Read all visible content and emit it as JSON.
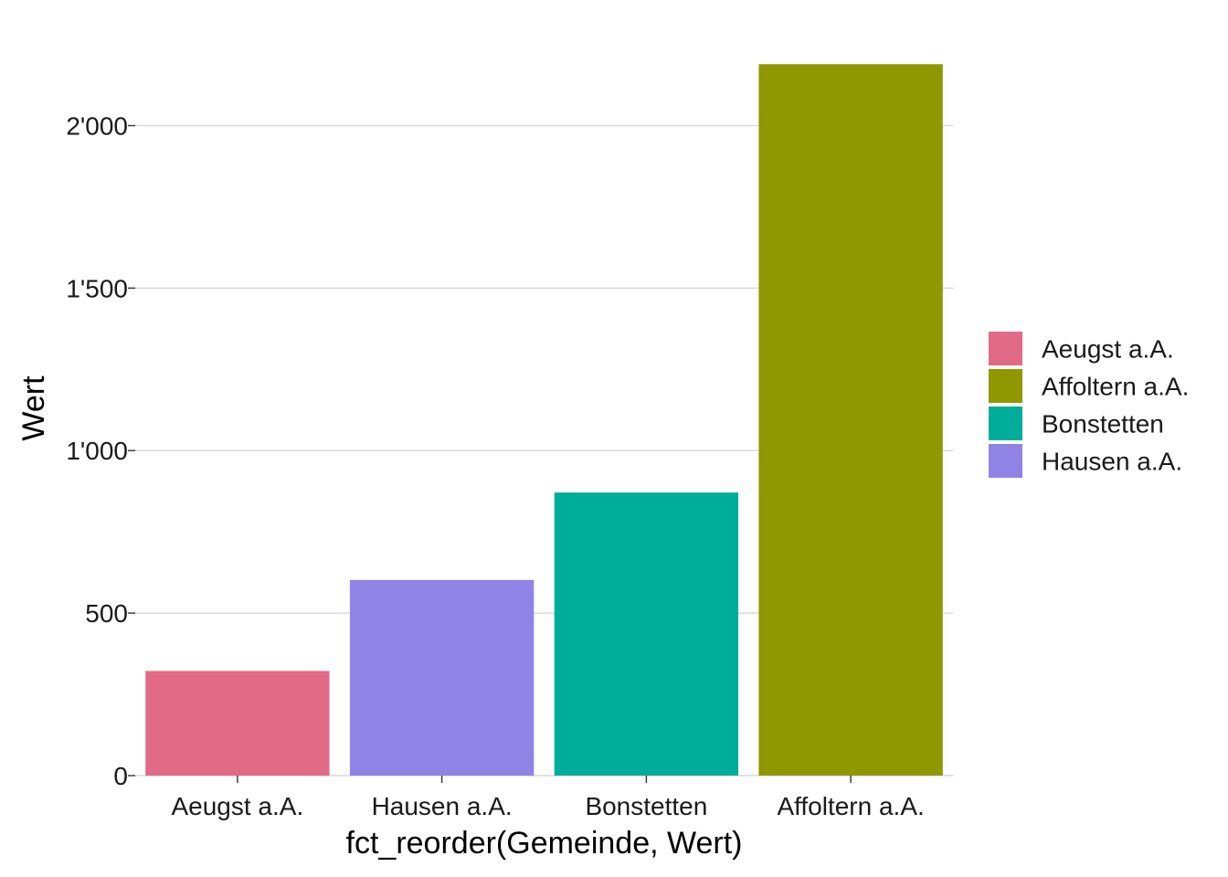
{
  "chart_data": {
    "type": "bar",
    "categories": [
      "Aeugst a.A.",
      "Hausen a.A.",
      "Bonstetten",
      "Affoltern a.A."
    ],
    "values": [
      322,
      602,
      871,
      2189
    ],
    "colors": [
      "#E16A86",
      "#9183E6",
      "#00AD9A",
      "#909800"
    ],
    "xlabel": "fct_reorder(Gemeinde, Wert)",
    "ylabel": "Wert",
    "ylim": [
      0,
      2260
    ],
    "yticks": [
      0,
      500,
      1000,
      1500,
      2000
    ],
    "ytick_labels": [
      "0",
      "500",
      "1'000",
      "1'500",
      "2'000"
    ],
    "grid": "horizontal-major",
    "legend": {
      "position": "right",
      "entries": [
        {
          "label": "Aeugst a.A.",
          "color": "#E16A86"
        },
        {
          "label": "Affoltern a.A.",
          "color": "#909800"
        },
        {
          "label": "Bonstetten",
          "color": "#00AD9A"
        },
        {
          "label": "Hausen a.A.",
          "color": "#9183E6"
        }
      ]
    }
  }
}
